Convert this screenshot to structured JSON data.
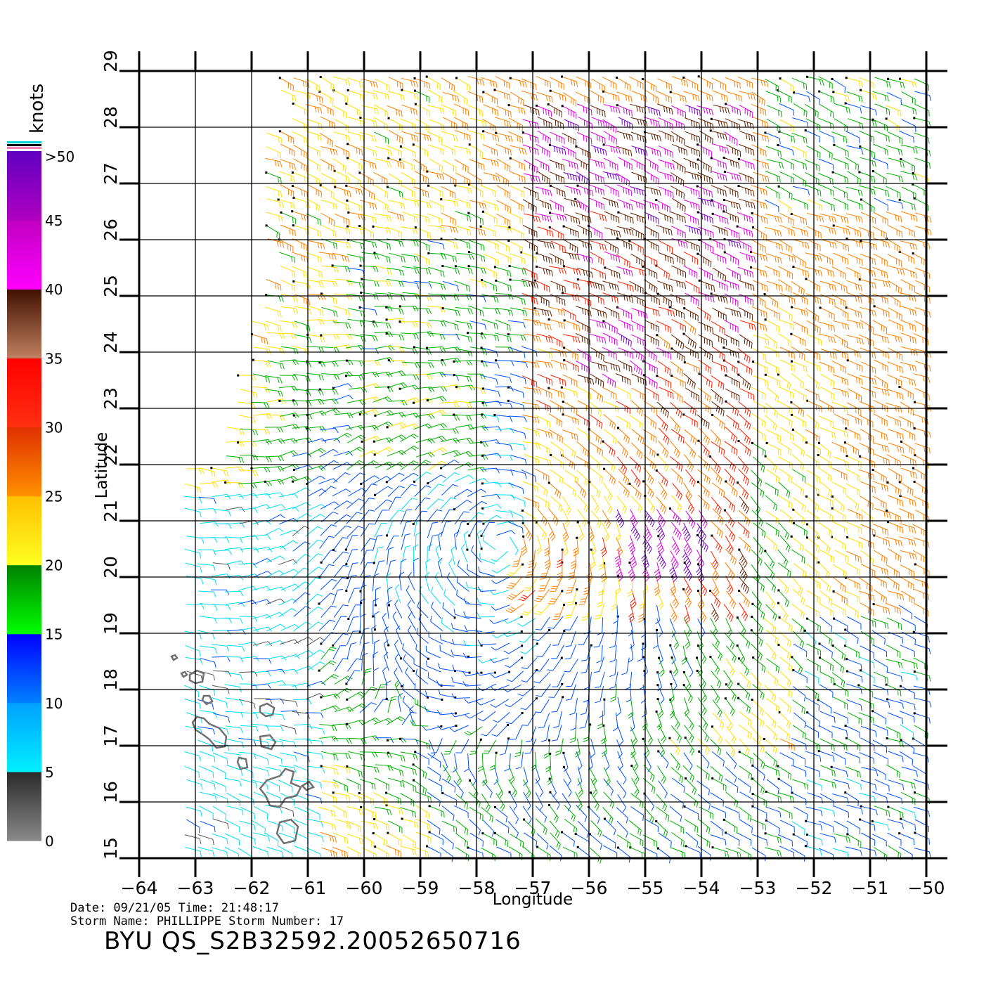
{
  "map": {
    "lon_range": [
      -64,
      -50
    ],
    "lat_range": [
      15,
      29
    ],
    "lon_ticks": [
      "-64",
      "-63",
      "-62",
      "-61",
      "-60",
      "-59",
      "-58",
      "-57",
      "-56",
      "-55",
      "-54",
      "-53",
      "-52",
      "-51",
      "-50"
    ],
    "lat_ticks": [
      "15",
      "16",
      "17",
      "18",
      "19",
      "20",
      "21",
      "22",
      "23",
      "24",
      "25",
      "26",
      "27",
      "28",
      "29"
    ],
    "xlabel": "Longitude",
    "ylabel": "Latitude",
    "grid": true,
    "storm_center": {
      "lon": -57.6,
      "lat": 20.6
    }
  },
  "colorbar": {
    "title": "knots",
    "labels": [
      ">50",
      "45",
      "40",
      "35",
      "30",
      "25",
      "20",
      "15",
      "10",
      "5",
      "0"
    ],
    "bands": [
      {
        "from": 0,
        "to": 5,
        "top": "#2a2a2a",
        "bottom": "#8a8a8a"
      },
      {
        "from": 5,
        "to": 10,
        "top": "#00a0ff",
        "bottom": "#00f0ff"
      },
      {
        "from": 10,
        "to": 15,
        "top": "#0000ff",
        "bottom": "#0080ff"
      },
      {
        "from": 15,
        "to": 20,
        "top": "#008000",
        "bottom": "#00ff00"
      },
      {
        "from": 20,
        "to": 25,
        "top": "#ffc000",
        "bottom": "#ffff20"
      },
      {
        "from": 25,
        "to": 30,
        "top": "#e03000",
        "bottom": "#ff9000"
      },
      {
        "from": 30,
        "to": 35,
        "top": "#ff0000",
        "bottom": "#ff3010"
      },
      {
        "from": 35,
        "to": 40,
        "top": "#401000",
        "bottom": "#c08060"
      },
      {
        "from": 40,
        "to": 45,
        "top": "#c000c0",
        "bottom": "#ff00ff"
      },
      {
        "from": 45,
        "to": 50,
        "top": "#6000c0",
        "bottom": "#b000c0"
      }
    ],
    "header_stripes": [
      "#00d0d0",
      "#000000",
      "#ff80c0"
    ]
  },
  "footer": {
    "line1": "Date: 09/21/05   Time: 21:48:17",
    "line2": "Storm Name: PHILLIPPE   Storm Number: 17",
    "product_id": "BYU QS_S2B32592.20052650716"
  },
  "colors": {
    "grid": "#000000",
    "coast": "#707070",
    "speed_0": "#555555",
    "speed_5": "#00e0f0",
    "speed_10": "#0050ff",
    "speed_15": "#00b000",
    "speed_20": "#ffe000",
    "speed_25": "#ff8000",
    "speed_30": "#ff2000",
    "speed_35": "#602000",
    "speed_40": "#e000e0",
    "speed_45": "#7000c0"
  }
}
